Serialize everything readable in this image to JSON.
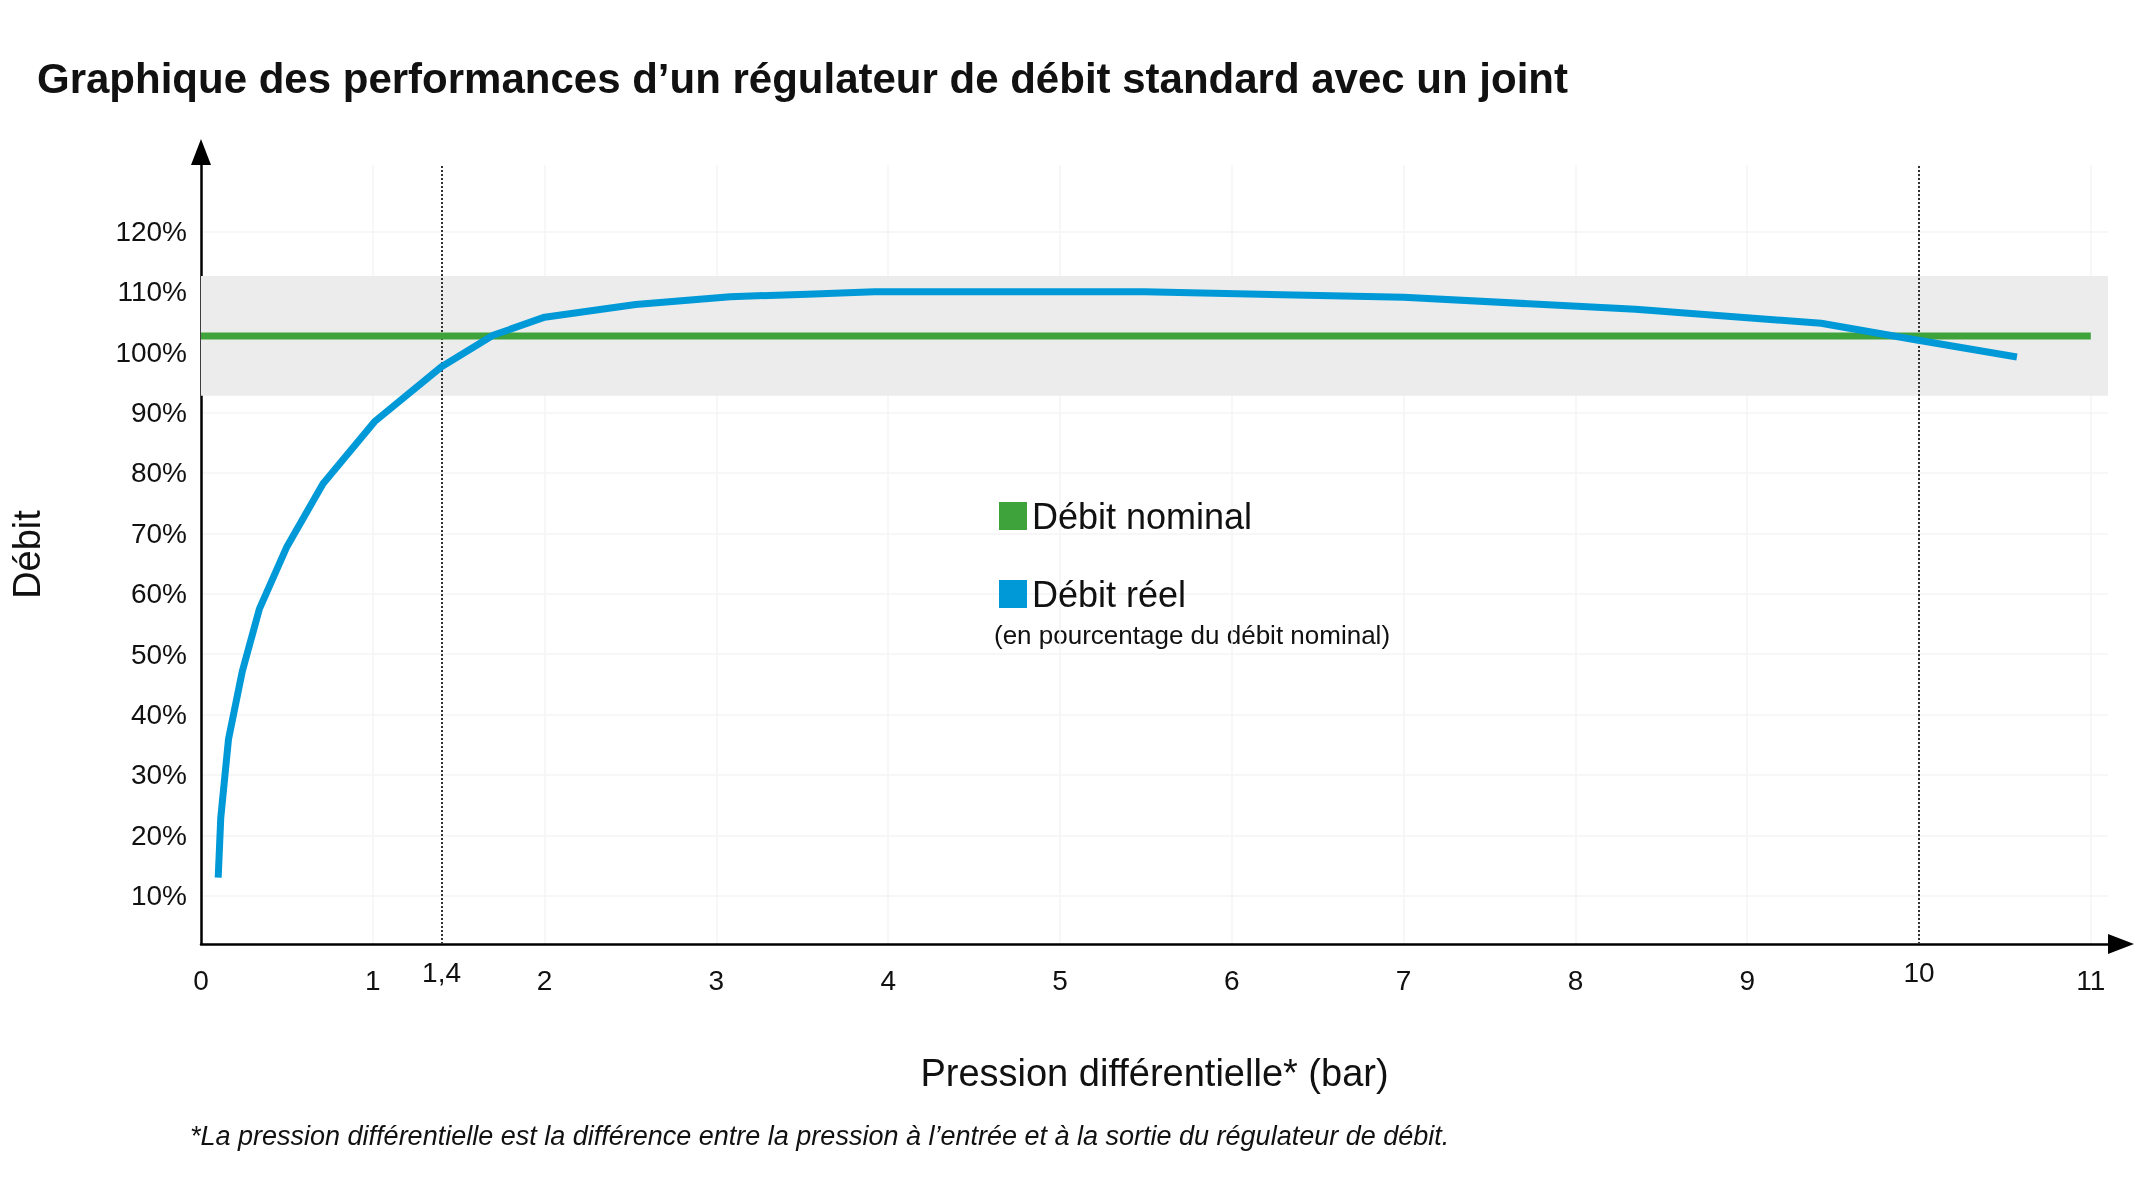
{
  "chart_data": {
    "type": "line",
    "title": "Graphique des performances d’un régulateur de débit standard avec un joint",
    "xlabel": "Pression différentielle* (bar)",
    "ylabel": "Débit",
    "series": [
      {
        "name": "Débit nominal",
        "color": "#3ea33a",
        "x": [
          0,
          11
        ],
        "values": [
          102.7,
          102.7
        ]
      },
      {
        "name": "Débit réel",
        "color": "#0099d8",
        "x": [
          0.1,
          0.115,
          0.16,
          0.24,
          0.34,
          0.5,
          0.71,
          1.01,
          1.4,
          1.7,
          2.0,
          2.53,
          3.08,
          3.53,
          3.92,
          5.49,
          7.0,
          8.35,
          9.43,
          9.97,
          10.57
        ],
        "values": [
          13,
          22.9,
          35.9,
          47.1,
          57.5,
          67.8,
          78.2,
          88.5,
          97.6,
          102.8,
          105.8,
          107.9,
          109.2,
          109.6,
          110,
          110,
          109.1,
          107.1,
          104.8,
          102.1,
          99.2
        ]
      }
    ],
    "xlim": [
      0,
      11.1
    ],
    "xticks": [
      0,
      1,
      2,
      3,
      4,
      5,
      6,
      7,
      8,
      9,
      {
        "value": 10,
        "label": null
      },
      11
    ],
    "ylim": [
      2,
      131
    ],
    "yticks": [
      {
        "value": 10,
        "label": "10%"
      },
      {
        "value": 20,
        "label": "20%"
      },
      {
        "value": 30,
        "label": "30%"
      },
      {
        "value": 40,
        "label": "40%"
      },
      {
        "value": 50,
        "label": "50%"
      },
      {
        "value": 60,
        "label": "60%"
      },
      {
        "value": 70,
        "label": "70%"
      },
      {
        "value": 80,
        "label": "80%"
      },
      {
        "value": 90,
        "label": "90%"
      },
      {
        "value": 100,
        "label": "100%"
      },
      {
        "value": 110,
        "label": "110%"
      },
      {
        "value": 120,
        "label": "120%"
      }
    ],
    "bands": [
      {
        "axis": "y",
        "from": 92.8,
        "to": 112.6,
        "color": "#ececec"
      }
    ],
    "ref_lines": [
      {
        "axis": "x",
        "value": 1.4,
        "label": "1,4",
        "line_style": "dotted",
        "color": "#333333"
      },
      {
        "axis": "x",
        "value": 10,
        "label": "10",
        "line_style": "dotted",
        "color": "#333333"
      }
    ],
    "annotations": [
      "(en pourcentage du débit nominal)",
      "*La pression différentielle est la différence entre la pression à l’entrée et à la sortie du régulateur de débit."
    ],
    "grid": true,
    "legend": "center",
    "marker": "none",
    "line_style": "solid"
  }
}
